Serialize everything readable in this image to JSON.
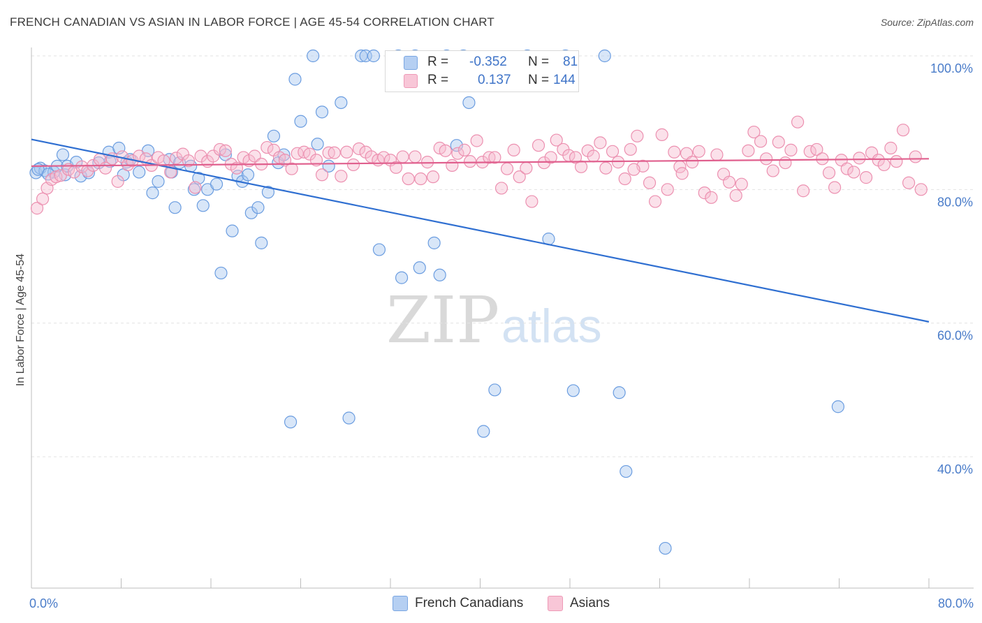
{
  "header": {
    "title": "FRENCH CANADIAN VS ASIAN IN LABOR FORCE | AGE 45-54 CORRELATION CHART",
    "source": "Source: ZipAtlas.com"
  },
  "legend": {
    "rows": [
      {
        "r_label": "R =",
        "r_value": "-0.352",
        "n_label": "N =",
        "n_value": "81"
      },
      {
        "r_label": "R =",
        "r_value": "0.137",
        "n_label": "N =",
        "n_value": "144"
      }
    ]
  },
  "watermark": {
    "zip": "ZIP",
    "atlas": "atlas"
  },
  "colors": {
    "blue_fill": "#a9c8f0",
    "blue_stroke": "#6b9de0",
    "blue_line": "#2f6fd1",
    "pink_fill": "#f6bcd0",
    "pink_stroke": "#ec90b0",
    "pink_line": "#e0608e",
    "tick_text": "#4a7cc9",
    "grid": "#e3e3e3"
  },
  "chart_data": {
    "type": "scatter",
    "title": "FRENCH CANADIAN VS ASIAN IN LABOR FORCE | AGE 45-54 CORRELATION CHART",
    "xlabel": "",
    "ylabel": "In Labor Force | Age 45-54",
    "xlim": [
      0,
      80
    ],
    "ylim": [
      20,
      103
    ],
    "x_ticks": [
      "0.0%",
      "80.0%"
    ],
    "y_ticks": [
      {
        "value": 100,
        "label": "100.0%"
      },
      {
        "value": 80,
        "label": "80.0%"
      },
      {
        "value": 60,
        "label": "60.0%"
      },
      {
        "value": 40,
        "label": "40.0%"
      }
    ],
    "grid": true,
    "legend_position": "top-center",
    "series": [
      {
        "name": "French Canadians",
        "color": "#a9c8f0",
        "r": -0.352,
        "n": 81,
        "trend": {
          "x": [
            0,
            80
          ],
          "y": [
            87.5,
            60.2
          ]
        },
        "points": [
          [
            0.4,
            82.5
          ],
          [
            0.8,
            83.2
          ],
          [
            1.2,
            82.8
          ],
          [
            2.0,
            82.6
          ],
          [
            2.3,
            83.5
          ],
          [
            2.8,
            85.2
          ],
          [
            3.0,
            82.2
          ],
          [
            3.2,
            83.5
          ],
          [
            4.4,
            82.0
          ],
          [
            5.1,
            82.5
          ],
          [
            6.9,
            85.6
          ],
          [
            7.0,
            84.2
          ],
          [
            7.8,
            86.2
          ],
          [
            8.2,
            82.2
          ],
          [
            8.5,
            84.1
          ],
          [
            8.8,
            84.5
          ],
          [
            9.6,
            82.6
          ],
          [
            10.4,
            85.8
          ],
          [
            10.8,
            79.5
          ],
          [
            11.3,
            81.2
          ],
          [
            12.3,
            84.5
          ],
          [
            12.5,
            82.6
          ],
          [
            12.8,
            77.3
          ],
          [
            13.2,
            84.0
          ],
          [
            14.2,
            83.5
          ],
          [
            14.5,
            80.0
          ],
          [
            14.9,
            81.7
          ],
          [
            15.3,
            77.6
          ],
          [
            15.7,
            80.0
          ],
          [
            16.5,
            80.8
          ],
          [
            16.9,
            67.5
          ],
          [
            17.3,
            85.2
          ],
          [
            17.9,
            73.8
          ],
          [
            18.4,
            82.0
          ],
          [
            18.8,
            81.2
          ],
          [
            19.3,
            82.2
          ],
          [
            19.6,
            76.5
          ],
          [
            20.2,
            77.3
          ],
          [
            20.5,
            72.0
          ],
          [
            21.1,
            79.6
          ],
          [
            21.6,
            88.0
          ],
          [
            22.0,
            84.0
          ],
          [
            22.5,
            85.2
          ],
          [
            23.1,
            45.2
          ],
          [
            23.5,
            96.5
          ],
          [
            24.0,
            90.2
          ],
          [
            25.1,
            100.0
          ],
          [
            25.5,
            86.8
          ],
          [
            25.9,
            91.6
          ],
          [
            26.5,
            83.5
          ],
          [
            27.6,
            93.0
          ],
          [
            28.3,
            45.8
          ],
          [
            29.4,
            100.0
          ],
          [
            29.8,
            100.0
          ],
          [
            30.5,
            100.0
          ],
          [
            31.0,
            71.0
          ],
          [
            32.7,
            100.0
          ],
          [
            33.0,
            66.8
          ],
          [
            34.2,
            100.0
          ],
          [
            34.6,
            68.3
          ],
          [
            35.9,
            72.0
          ],
          [
            36.4,
            67.2
          ],
          [
            37.0,
            100.0
          ],
          [
            37.9,
            86.6
          ],
          [
            38.5,
            100.0
          ],
          [
            39.0,
            93.0
          ],
          [
            40.3,
            43.8
          ],
          [
            41.3,
            50.0
          ],
          [
            44.2,
            100.0
          ],
          [
            46.1,
            72.6
          ],
          [
            47.6,
            100.0
          ],
          [
            48.3,
            49.9
          ],
          [
            51.1,
            100.0
          ],
          [
            52.4,
            49.6
          ],
          [
            53.0,
            37.8
          ],
          [
            56.5,
            26.3
          ],
          [
            71.9,
            47.5
          ],
          [
            0.6,
            83.0
          ],
          [
            1.5,
            82.3
          ],
          [
            4.0,
            84.1
          ],
          [
            6.0,
            84.0
          ]
        ]
      },
      {
        "name": "Asians",
        "color": "#f6bcd0",
        "r": 0.137,
        "n": 144,
        "trend": {
          "x": [
            0,
            80
          ],
          "y": [
            83.5,
            84.6
          ]
        },
        "points": [
          [
            0.5,
            77.2
          ],
          [
            1.0,
            78.6
          ],
          [
            1.4,
            80.2
          ],
          [
            1.8,
            81.5
          ],
          [
            2.2,
            81.9
          ],
          [
            2.6,
            82.1
          ],
          [
            3.3,
            83.0
          ],
          [
            3.8,
            82.6
          ],
          [
            4.5,
            83.4
          ],
          [
            5.0,
            82.8
          ],
          [
            5.5,
            83.6
          ],
          [
            6.1,
            84.5
          ],
          [
            6.6,
            83.2
          ],
          [
            7.2,
            84.6
          ],
          [
            7.7,
            81.2
          ],
          [
            8.1,
            84.9
          ],
          [
            8.6,
            83.7
          ],
          [
            9.0,
            84.3
          ],
          [
            9.6,
            85.0
          ],
          [
            10.2,
            84.6
          ],
          [
            10.7,
            83.6
          ],
          [
            11.3,
            84.8
          ],
          [
            11.8,
            84.3
          ],
          [
            12.4,
            82.6
          ],
          [
            12.9,
            84.7
          ],
          [
            13.5,
            85.3
          ],
          [
            14.0,
            84.3
          ],
          [
            14.6,
            80.3
          ],
          [
            15.1,
            85.0
          ],
          [
            15.7,
            84.2
          ],
          [
            16.2,
            85.0
          ],
          [
            16.8,
            86.0
          ],
          [
            17.3,
            85.8
          ],
          [
            17.8,
            83.8
          ],
          [
            18.3,
            83.2
          ],
          [
            18.9,
            84.8
          ],
          [
            19.4,
            84.3
          ],
          [
            19.9,
            85.0
          ],
          [
            20.5,
            83.8
          ],
          [
            21.0,
            86.3
          ],
          [
            21.6,
            85.9
          ],
          [
            22.1,
            84.8
          ],
          [
            22.6,
            84.4
          ],
          [
            23.2,
            83.1
          ],
          [
            23.7,
            85.4
          ],
          [
            24.3,
            85.6
          ],
          [
            24.8,
            85.3
          ],
          [
            25.4,
            84.4
          ],
          [
            25.9,
            82.2
          ],
          [
            26.5,
            85.5
          ],
          [
            27.0,
            85.5
          ],
          [
            27.6,
            82.0
          ],
          [
            28.1,
            85.6
          ],
          [
            28.7,
            83.7
          ],
          [
            29.2,
            86.1
          ],
          [
            29.8,
            85.6
          ],
          [
            30.3,
            84.9
          ],
          [
            30.9,
            84.4
          ],
          [
            31.4,
            84.8
          ],
          [
            32.0,
            84.4
          ],
          [
            32.5,
            83.3
          ],
          [
            33.1,
            84.9
          ],
          [
            33.6,
            81.6
          ],
          [
            34.2,
            84.9
          ],
          [
            34.7,
            81.6
          ],
          [
            35.3,
            84.1
          ],
          [
            35.8,
            81.9
          ],
          [
            36.4,
            86.2
          ],
          [
            36.9,
            85.8
          ],
          [
            37.5,
            83.6
          ],
          [
            38.0,
            85.4
          ],
          [
            38.6,
            85.9
          ],
          [
            39.1,
            84.2
          ],
          [
            39.7,
            87.3
          ],
          [
            40.2,
            84.1
          ],
          [
            40.8,
            84.8
          ],
          [
            41.3,
            84.8
          ],
          [
            41.9,
            80.2
          ],
          [
            42.4,
            83.1
          ],
          [
            43.0,
            85.9
          ],
          [
            43.5,
            81.9
          ],
          [
            44.1,
            83.2
          ],
          [
            44.6,
            78.2
          ],
          [
            45.2,
            86.6
          ],
          [
            45.7,
            84.0
          ],
          [
            46.3,
            84.8
          ],
          [
            46.8,
            87.4
          ],
          [
            47.4,
            86.0
          ],
          [
            47.9,
            85.1
          ],
          [
            48.5,
            84.8
          ],
          [
            49.0,
            83.4
          ],
          [
            49.6,
            85.8
          ],
          [
            50.1,
            85.0
          ],
          [
            50.7,
            87.0
          ],
          [
            51.2,
            83.2
          ],
          [
            51.8,
            85.7
          ],
          [
            52.3,
            84.1
          ],
          [
            52.9,
            81.6
          ],
          [
            53.4,
            86.0
          ],
          [
            54.0,
            88.0
          ],
          [
            54.5,
            83.5
          ],
          [
            55.1,
            81.0
          ],
          [
            55.6,
            78.2
          ],
          [
            56.2,
            88.2
          ],
          [
            56.7,
            80.0
          ],
          [
            57.3,
            85.6
          ],
          [
            57.8,
            83.4
          ],
          [
            58.4,
            85.4
          ],
          [
            58.9,
            84.1
          ],
          [
            59.5,
            85.7
          ],
          [
            60.0,
            79.5
          ],
          [
            60.6,
            78.8
          ],
          [
            61.1,
            85.2
          ],
          [
            61.7,
            82.3
          ],
          [
            62.2,
            81.1
          ],
          [
            62.8,
            79.1
          ],
          [
            63.3,
            80.8
          ],
          [
            63.9,
            85.8
          ],
          [
            64.4,
            88.6
          ],
          [
            65.0,
            87.2
          ],
          [
            65.5,
            84.6
          ],
          [
            66.1,
            82.8
          ],
          [
            66.6,
            87.1
          ],
          [
            67.2,
            84.0
          ],
          [
            67.7,
            85.9
          ],
          [
            68.3,
            90.1
          ],
          [
            68.8,
            79.8
          ],
          [
            69.4,
            85.7
          ],
          [
            70.0,
            86.0
          ],
          [
            70.5,
            84.6
          ],
          [
            71.1,
            82.5
          ],
          [
            71.6,
            80.3
          ],
          [
            72.2,
            84.4
          ],
          [
            72.7,
            83.1
          ],
          [
            73.3,
            82.6
          ],
          [
            73.8,
            84.7
          ],
          [
            74.4,
            81.8
          ],
          [
            74.9,
            85.5
          ],
          [
            75.5,
            84.4
          ],
          [
            76.0,
            83.7
          ],
          [
            76.6,
            86.2
          ],
          [
            77.1,
            84.2
          ],
          [
            77.7,
            88.9
          ],
          [
            78.2,
            81.0
          ],
          [
            78.8,
            84.9
          ],
          [
            79.3,
            80.0
          ],
          [
            53.7,
            83.0
          ],
          [
            58.0,
            82.4
          ]
        ]
      }
    ]
  }
}
